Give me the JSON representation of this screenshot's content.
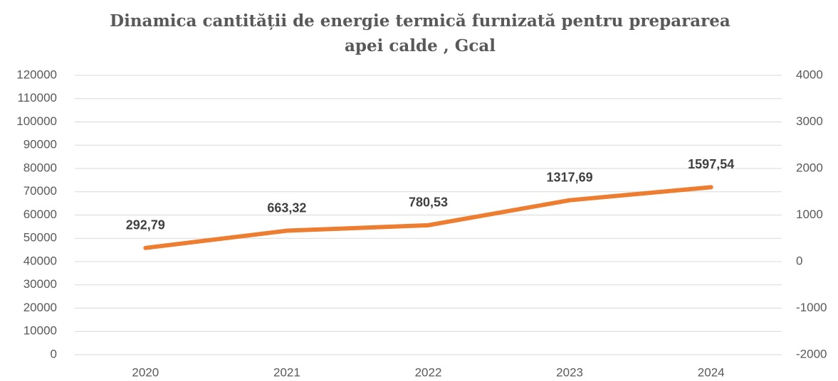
{
  "chart_data": {
    "type": "line",
    "title": [
      "Dinamica cantității de energie termică furnizată pentru prepararea",
      "apei calde , Gcal"
    ],
    "categories": [
      "2020",
      "2021",
      "2022",
      "2023",
      "2024"
    ],
    "series": [
      {
        "color": "#ed7d31",
        "axis": "y2",
        "values": [
          292.79,
          663.32,
          780.53,
          1317.69,
          1597.54
        ],
        "value_labels": [
          "292,79",
          "663,32",
          "780,53",
          "1317,69",
          "1597,54"
        ]
      }
    ],
    "ylim": [
      0,
      120000
    ],
    "yticks": [
      0,
      10000,
      20000,
      30000,
      40000,
      50000,
      60000,
      70000,
      80000,
      90000,
      100000,
      110000,
      120000
    ],
    "y2lim": [
      -2000,
      4000
    ],
    "y2ticks": [
      -2000,
      -1000,
      0,
      1000,
      2000,
      3000,
      4000
    ],
    "grid": true
  }
}
